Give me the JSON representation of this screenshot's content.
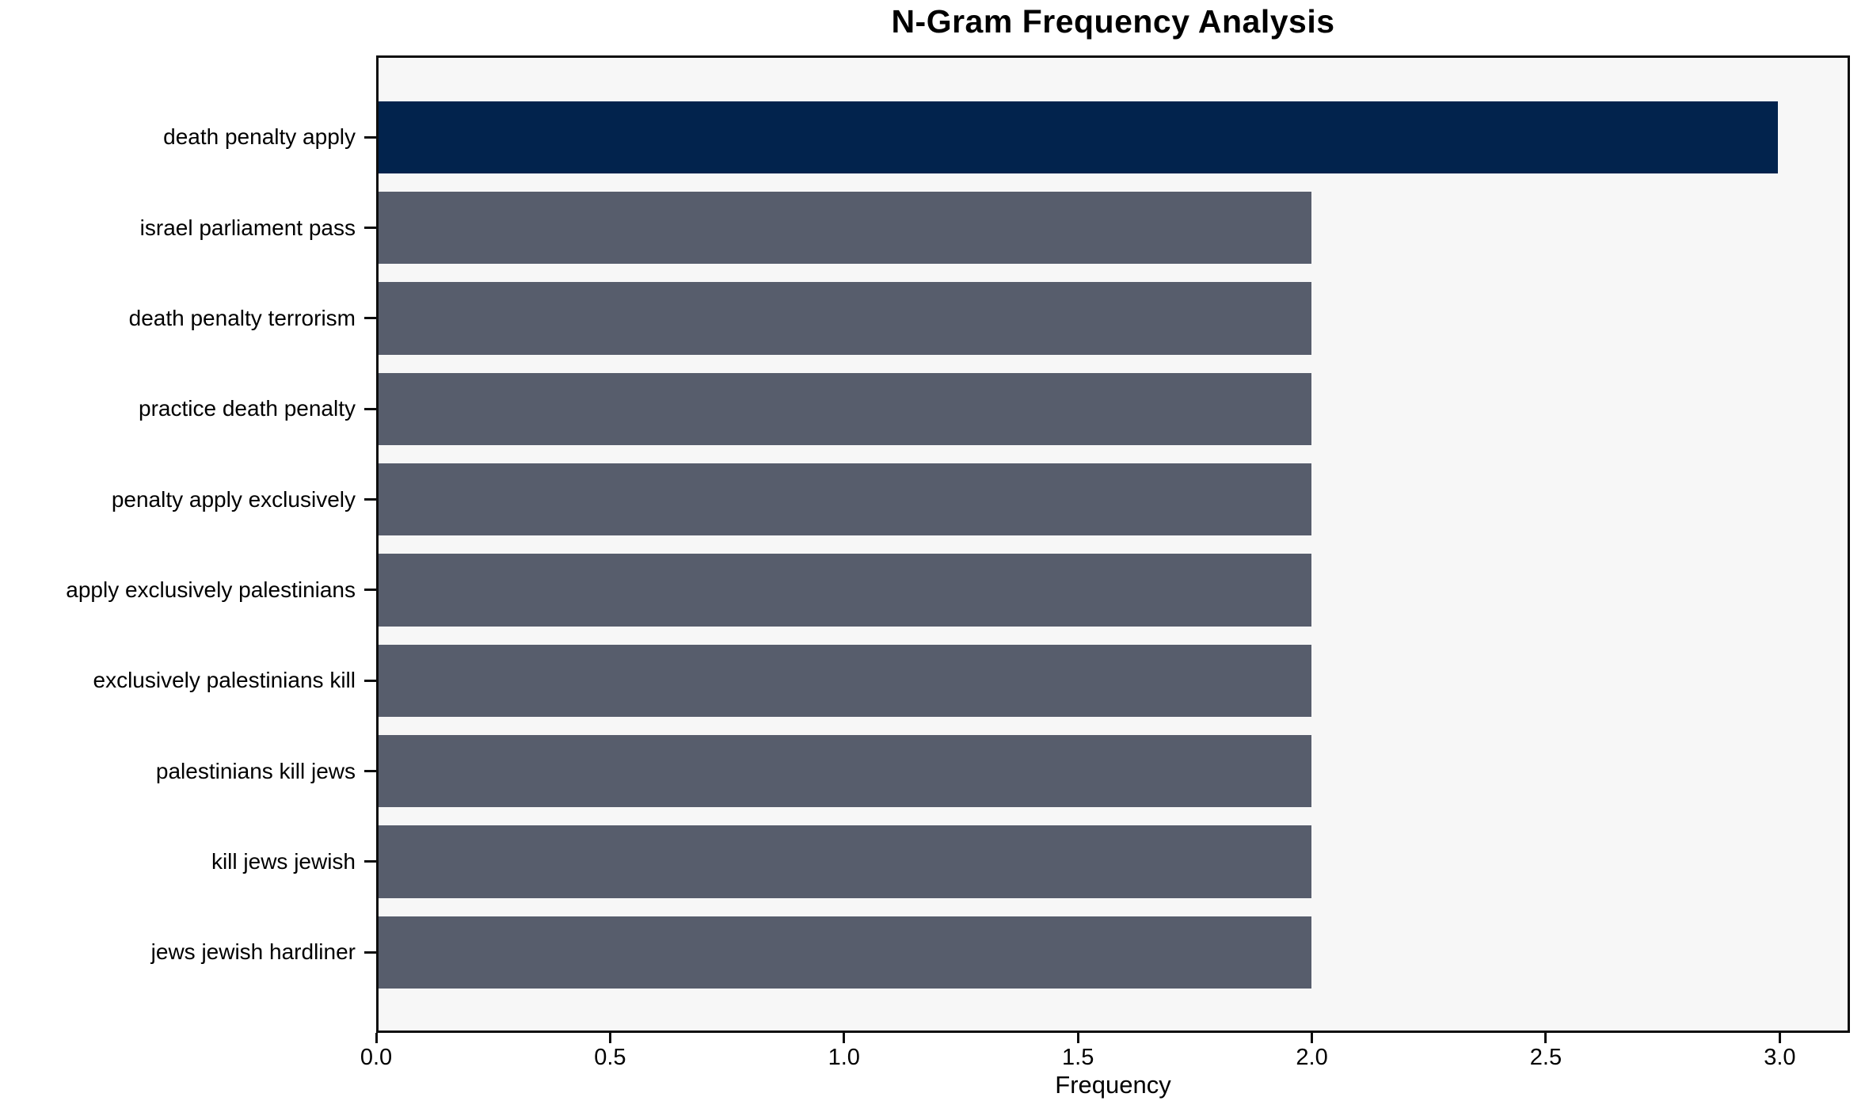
{
  "chart_data": {
    "type": "bar",
    "orientation": "horizontal",
    "title": "N-Gram Frequency Analysis",
    "xlabel": "Frequency",
    "ylabel": "",
    "categories": [
      "death penalty apply",
      "israel parliament pass",
      "death penalty terrorism",
      "practice death penalty",
      "penalty apply exclusively",
      "apply exclusively palestinians",
      "exclusively palestinians kill",
      "palestinians kill jews",
      "kill jews jewish",
      "jews jewish hardliner"
    ],
    "values": [
      3,
      2,
      2,
      2,
      2,
      2,
      2,
      2,
      2,
      2
    ],
    "highlight_index": 0,
    "x_tick_labels": [
      "0.0",
      "0.5",
      "1.0",
      "1.5",
      "2.0",
      "2.5",
      "3.0"
    ],
    "x_tick_values": [
      0.0,
      0.5,
      1.0,
      1.5,
      2.0,
      2.5,
      3.0
    ],
    "xlim": [
      0,
      3.15
    ],
    "grid": false,
    "legend": null,
    "colors": {
      "highlight_bar": "#02234d",
      "other_bars": "#575d6c",
      "plot_background": "#f7f7f7",
      "spine": "#0d0d0d",
      "text": "#000000",
      "page_background": "#ffffff"
    }
  }
}
